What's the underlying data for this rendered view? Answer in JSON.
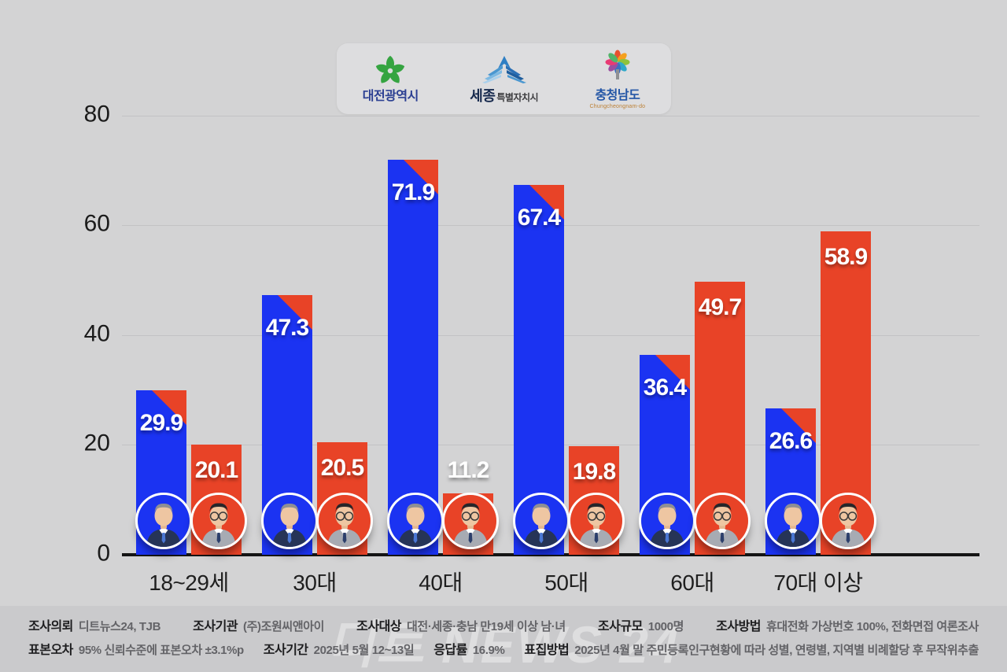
{
  "page": {
    "background": "#d3d3d4",
    "footer_background": "#cacacc"
  },
  "header_logos": {
    "daejeon": {
      "name": "대전광역시"
    },
    "sejong": {
      "name_main": "세종",
      "name_sub": "특별자치시"
    },
    "chungnam": {
      "name": "충청남도",
      "romanized": "Chungcheongnam-do"
    }
  },
  "chart_data": {
    "type": "bar",
    "categories": [
      "18~29세",
      "30대",
      "40대",
      "50대",
      "60대",
      "70대 이상"
    ],
    "series": [
      {
        "name": "candidate-blue",
        "color": "#1b33f2",
        "values": [
          29.9,
          47.3,
          71.9,
          67.4,
          36.4,
          26.6
        ]
      },
      {
        "name": "candidate-red",
        "color": "#e84327",
        "values": [
          20.1,
          20.5,
          11.2,
          19.8,
          49.7,
          58.9
        ]
      }
    ],
    "ylim": [
      0,
      80
    ],
    "ytick_labels": [
      "0",
      "20",
      "40",
      "60",
      "80"
    ],
    "grid": "horizontal",
    "legend": "none",
    "value_labels": "on"
  },
  "watermark": "디트 NEWS 24",
  "footer": {
    "rows": [
      {
        "items": [
          {
            "label": "조사의뢰",
            "value": "디트뉴스24, TJB"
          },
          {
            "label": "조사기관",
            "value": "(주)조원씨앤아이"
          },
          {
            "label": "조사대상",
            "value": "대전·세종·충남 만19세 이상 남·녀"
          },
          {
            "label": "조사규모",
            "value": "1000명"
          },
          {
            "label": "조사방법",
            "value": "휴대전화 가상번호 100%, 전화면접 여론조사"
          }
        ]
      },
      {
        "items": [
          {
            "label": "표본오차",
            "value": "95% 신뢰수준에 표본오차 ±3.1%p"
          },
          {
            "label": "조사기간",
            "value": "2025년 5월 12~13일"
          },
          {
            "label": "응답률",
            "value": "16.9%"
          },
          {
            "label": "표집방법",
            "value": "2025년 4월 말 주민등록인구현황에 따라 성별, 연령별, 지역별 비례할당 후 무작위추출"
          }
        ]
      }
    ]
  }
}
